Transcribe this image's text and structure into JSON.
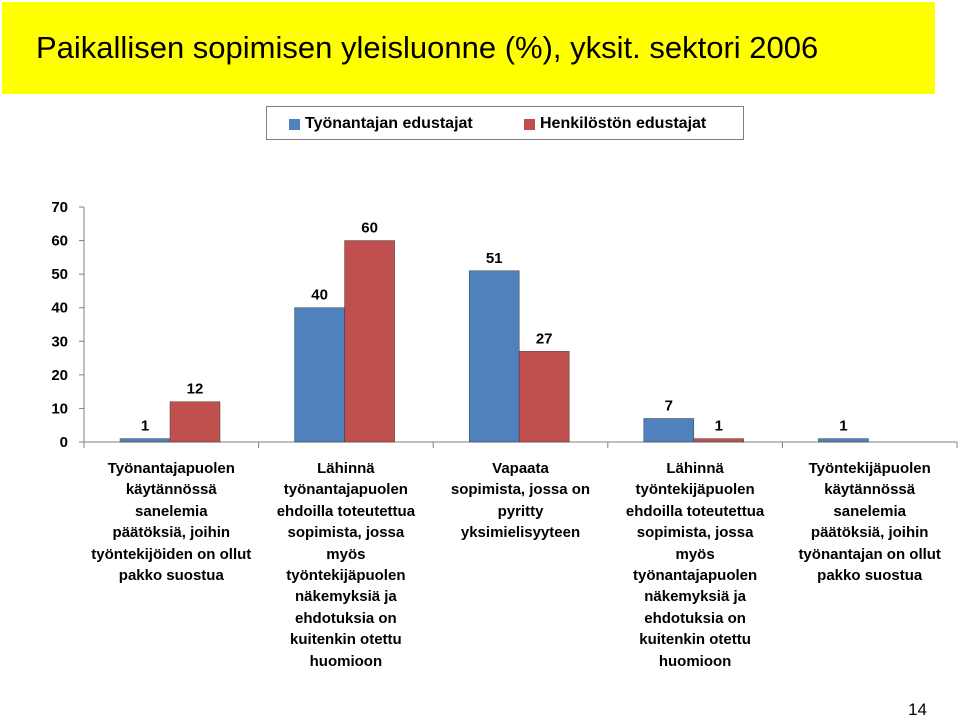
{
  "title": "Paikallisen sopimisen yleisluonne (%), yksit. sektori 2006",
  "page_number": "14",
  "colors": {
    "title_bg": "#ffff00",
    "series1": "#4f81bd",
    "series2": "#c0504d"
  },
  "chart_data": {
    "type": "bar",
    "categories": [
      "Työnantajapuolen\nkäytännössä\nsanelemia\npäätöksiä, joihin\ntyöntekijöiden on ollut\npakko suostua",
      "Lähinnä\ntyönantajapuolen\nehdoilla toteutettua\nsopimista, jossa\nmyös\ntyöntekijäpuolen\nnäkemyksiä ja\nehdotuksia on\nkuitenkin otettu\nhuomioon",
      "Vapaata\nsopimista, jossa on\npyritty\nyksimielisyyteen",
      "Lähinnä\ntyöntekijäpuolen\nehdoilla toteutettua\nsopimista, jossa\nmyös\ntyönantajapuolen\nnäkemyksiä ja\nehdotuksia on\nkuitenkin otettu\nhuomioon",
      "Työntekijäpuolen\nkäytännössä\nsanelemia\npäätöksiä, joihin\ntyönantajan on ollut\npakko suostua"
    ],
    "series": [
      {
        "name": "Työnantajan edustajat",
        "values": [
          1,
          40,
          51,
          7,
          1
        ],
        "labels": [
          "1",
          "40",
          "51",
          "7",
          "1"
        ]
      },
      {
        "name": "Henkilöstön edustajat",
        "values": [
          12,
          60,
          27,
          1,
          0
        ],
        "labels": [
          "12",
          "60",
          "27",
          "1",
          ""
        ]
      }
    ],
    "ylim": [
      0,
      70
    ],
    "yticks": [
      "0",
      "10",
      "20",
      "30",
      "40",
      "50",
      "60",
      "70"
    ],
    "legend": "top",
    "grid": false
  }
}
